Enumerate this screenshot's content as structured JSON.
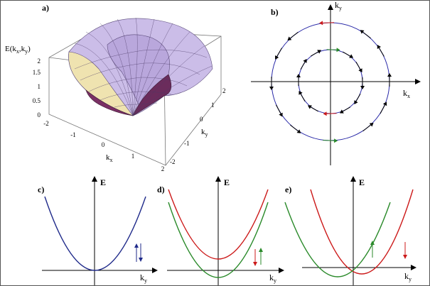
{
  "panels": {
    "a": {
      "label": "a)",
      "zlabel_main": "E(k",
      "zlabel_sub1": "x",
      "zlabel_mid": ",k",
      "zlabel_sub2": "y",
      "zlabel_end": ")",
      "z_ticks": [
        "0",
        "0.5",
        "1",
        "1.5",
        "2"
      ],
      "kx_ticks": [
        "-2",
        "-1",
        "0",
        "1",
        "2"
      ],
      "ky_ticks": [
        "2",
        "1",
        "0",
        "-1",
        "-2"
      ],
      "kx_label": "k",
      "kx_sub": "x",
      "ky_label": "k",
      "ky_sub": "y"
    },
    "b": {
      "label": "b)",
      "x_label": "k",
      "x_sub": "x",
      "y_label": "k",
      "y_sub": "y"
    },
    "c": {
      "label": "c)",
      "y_label": "E",
      "x_label": "k",
      "x_sub": "y"
    },
    "d": {
      "label": "d)",
      "y_label": "E",
      "x_label": "k",
      "x_sub": "y"
    },
    "e": {
      "label": "e)",
      "y_label": "E",
      "x_label": "k",
      "x_sub": "y"
    }
  },
  "colors": {
    "surface": "#c8b8e6",
    "surface_warm": "#f3e8b4",
    "surface_dark": "#5b2750",
    "ring": "#2a2aa8",
    "blue": "#1f2a8a",
    "red": "#cc1a1a",
    "green": "#2a8a2a",
    "axis": "#000000"
  }
}
